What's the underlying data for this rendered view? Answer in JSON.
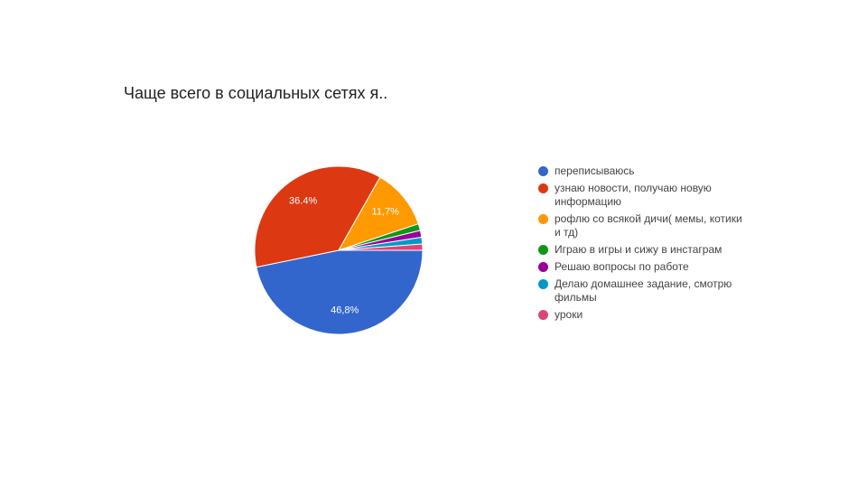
{
  "chart_data": {
    "type": "pie",
    "title": "Чаще всего в социальных сетях я..",
    "categories": [
      "переписываюсь",
      "узнаю новости, получаю новую информацию",
      "рофлю со всякой дичи( мемы, котики и тд)",
      "Играю в игры и сижу в инстаграм",
      "Решаю вопросы по работе",
      "Делаю домашнее задание, смотрю фильмы",
      "уроки"
    ],
    "values": [
      46.8,
      36.4,
      11.7,
      1.3,
      1.3,
      1.3,
      1.2
    ],
    "value_labels": [
      "46,8%",
      "36.4%",
      "11,7%",
      null,
      null,
      null,
      null
    ],
    "colors": [
      "#3366cc",
      "#dc3912",
      "#ff9900",
      "#109618",
      "#990099",
      "#0099c6",
      "#dd4477"
    ],
    "legend": "right"
  }
}
